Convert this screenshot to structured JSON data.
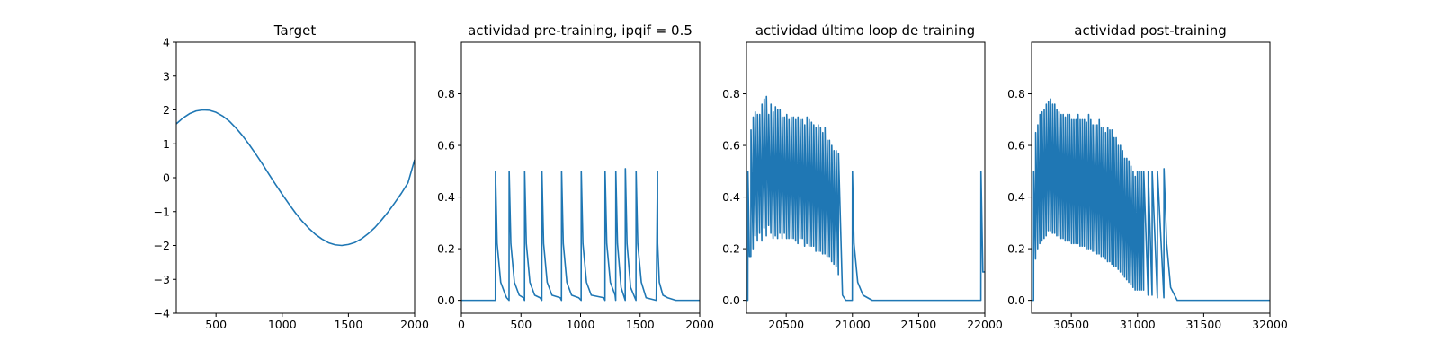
{
  "figure": {
    "background": "#ffffff",
    "line_color": "#1f77b4"
  },
  "chart_data": [
    {
      "type": "line",
      "title": "Target",
      "xlim": [
        200,
        2000
      ],
      "ylim": [
        -4,
        4
      ],
      "xticks": [
        500,
        1000,
        1500,
        2000
      ],
      "yticks": [
        -4,
        -3,
        -2,
        -1,
        0,
        1,
        2,
        3,
        4
      ],
      "tick_labels_x": [
        "500",
        "1000",
        "1500",
        "2000"
      ],
      "tick_labels_y": [
        "−4",
        "−3",
        "−2",
        "−1",
        "0",
        "1",
        "2",
        "3",
        "4"
      ],
      "series": [
        {
          "x": [
            200,
            250,
            300,
            350,
            400,
            450,
            500,
            550,
            600,
            650,
            700,
            750,
            800,
            850,
            900,
            950,
            1000,
            1050,
            1100,
            1150,
            1200,
            1250,
            1300,
            1350,
            1400,
            1450,
            1500,
            1550,
            1600,
            1650,
            1700,
            1750,
            1800,
            1850,
            1900,
            1950,
            2000
          ],
          "y": [
            1.59,
            1.76,
            1.89,
            1.97,
            2.0,
            1.99,
            1.93,
            1.82,
            1.67,
            1.47,
            1.24,
            0.98,
            0.7,
            0.41,
            0.1,
            -0.2,
            -0.49,
            -0.77,
            -1.04,
            -1.28,
            -1.49,
            -1.67,
            -1.81,
            -1.92,
            -1.98,
            -2.0,
            -1.97,
            -1.91,
            -1.8,
            -1.65,
            -1.47,
            -1.25,
            -1.01,
            -0.74,
            -0.46,
            -0.15,
            0.53
          ]
        }
      ]
    },
    {
      "type": "line",
      "title": "actividad pre-training, ipqif = 0.5",
      "xlim": [
        0,
        2000
      ],
      "ylim": [
        -0.05,
        1.0
      ],
      "xticks": [
        0,
        500,
        1000,
        1500,
        2000
      ],
      "yticks": [
        0.0,
        0.2,
        0.4,
        0.6,
        0.8
      ],
      "tick_labels_x": [
        "0",
        "500",
        "1000",
        "1500",
        "2000"
      ],
      "tick_labels_y": [
        "0.0",
        "0.2",
        "0.4",
        "0.6",
        "0.8"
      ],
      "series": [
        {
          "x": [
            0,
            285,
            286,
            300,
            330,
            370,
            380,
            400,
            401,
            415,
            445,
            485,
            520,
            530,
            531,
            545,
            575,
            615,
            660,
            675,
            676,
            690,
            720,
            760,
            830,
            840,
            841,
            855,
            885,
            925,
            985,
            1005,
            1006,
            1020,
            1050,
            1090,
            1195,
            1205,
            1206,
            1220,
            1250,
            1290,
            1295,
            1296,
            1310,
            1340,
            1375,
            1376,
            1390,
            1420,
            1465,
            1466,
            1480,
            1510,
            1550,
            1635,
            1646,
            1647,
            1661,
            1691,
            1731,
            1800,
            2000
          ],
          "y": [
            0,
            0,
            0.5,
            0.22,
            0.07,
            0.02,
            0.01,
            0,
            0.5,
            0.22,
            0.07,
            0.02,
            0.01,
            0,
            0.5,
            0.22,
            0.07,
            0.02,
            0.01,
            0,
            0.5,
            0.22,
            0.07,
            0.02,
            0.01,
            0,
            0.5,
            0.22,
            0.07,
            0.02,
            0.01,
            0,
            0.5,
            0.22,
            0.07,
            0.02,
            0.01,
            0,
            0.5,
            0.22,
            0.07,
            0.02,
            0,
            0.5,
            0.22,
            0.05,
            0,
            0.51,
            0.22,
            0.05,
            0,
            0.5,
            0.22,
            0.07,
            0.01,
            0,
            0.5,
            0.22,
            0.07,
            0.02,
            0.01,
            0,
            0
          ]
        }
      ]
    },
    {
      "type": "line",
      "title": "actividad último loop de training",
      "xlim": [
        20200,
        22000
      ],
      "ylim": [
        -0.05,
        1.0
      ],
      "xticks": [
        20500,
        21000,
        21500,
        22000
      ],
      "yticks": [
        0.0,
        0.2,
        0.4,
        0.6,
        0.8
      ],
      "tick_labels_x": [
        "20500",
        "21000",
        "21500",
        "22000"
      ],
      "tick_labels_y": [
        "0.0",
        "0.2",
        "0.4",
        "0.6",
        "0.8"
      ],
      "series": [
        {
          "x": [
            20200,
            20210,
            20211,
            20222,
            20233,
            20234,
            20250,
            20251,
            20265,
            20266,
            20282,
            20283,
            20299,
            20300,
            20316,
            20317,
            20333,
            20334,
            20350,
            20351,
            20367,
            20368,
            20384,
            20385,
            20401,
            20402,
            20418,
            20419,
            20435,
            20436,
            20452,
            20453,
            20469,
            20470,
            20486,
            20487,
            20503,
            20504,
            20520,
            20521,
            20537,
            20538,
            20554,
            20555,
            20571,
            20572,
            20588,
            20589,
            20605,
            20606,
            20622,
            20623,
            20639,
            20640,
            20656,
            20657,
            20673,
            20674,
            20690,
            20691,
            20707,
            20708,
            20724,
            20725,
            20741,
            20742,
            20758,
            20759,
            20775,
            20776,
            20792,
            20793,
            20809,
            20810,
            20826,
            20827,
            20843,
            20844,
            20860,
            20861,
            20877,
            20878,
            20894,
            20895,
            20925,
            20950,
            20990,
            20999,
            21000,
            21012,
            21040,
            21080,
            21150,
            21960,
            21970,
            21971,
            21985,
            22000
          ],
          "y": [
            0,
            0,
            0.5,
            0.17,
            0.17,
            0.66,
            0.2,
            0.71,
            0.25,
            0.73,
            0.23,
            0.72,
            0.26,
            0.72,
            0.23,
            0.76,
            0.28,
            0.78,
            0.25,
            0.79,
            0.29,
            0.72,
            0.26,
            0.76,
            0.24,
            0.73,
            0.25,
            0.75,
            0.24,
            0.74,
            0.26,
            0.74,
            0.24,
            0.71,
            0.26,
            0.71,
            0.24,
            0.72,
            0.24,
            0.7,
            0.24,
            0.71,
            0.24,
            0.71,
            0.23,
            0.7,
            0.22,
            0.71,
            0.24,
            0.7,
            0.24,
            0.7,
            0.21,
            0.68,
            0.22,
            0.71,
            0.21,
            0.7,
            0.21,
            0.69,
            0.21,
            0.68,
            0.19,
            0.67,
            0.19,
            0.68,
            0.19,
            0.67,
            0.18,
            0.65,
            0.18,
            0.67,
            0.17,
            0.62,
            0.17,
            0.62,
            0.15,
            0.6,
            0.14,
            0.58,
            0.13,
            0.58,
            0.1,
            0.57,
            0.02,
            0.0,
            0.0,
            0.0,
            0.5,
            0.22,
            0.07,
            0.02,
            0,
            0,
            0,
            0.5,
            0.11,
            0.11
          ]
        }
      ]
    },
    {
      "type": "line",
      "title": "actividad post-training",
      "xlim": [
        30200,
        32000
      ],
      "ylim": [
        -0.05,
        1.0
      ],
      "xticks": [
        30500,
        31000,
        31500,
        32000
      ],
      "yticks": [
        0.0,
        0.2,
        0.4,
        0.6,
        0.8
      ],
      "tick_labels_x": [
        "30500",
        "31000",
        "31500",
        "32000"
      ],
      "tick_labels_y": [
        "0.0",
        "0.2",
        "0.4",
        "0.6",
        "0.8"
      ],
      "series": [
        {
          "x": [
            30200,
            30215,
            30216,
            30230,
            30231,
            30246,
            30247,
            30262,
            30263,
            30278,
            30279,
            30294,
            30295,
            30310,
            30311,
            30326,
            30327,
            30342,
            30343,
            30358,
            30359,
            30374,
            30375,
            30390,
            30391,
            30406,
            30407,
            30422,
            30423,
            30438,
            30439,
            30454,
            30455,
            30470,
            30471,
            30486,
            30487,
            30502,
            30503,
            30518,
            30519,
            30534,
            30535,
            30550,
            30551,
            30566,
            30567,
            30582,
            30583,
            30598,
            30599,
            30614,
            30615,
            30630,
            30631,
            30646,
            30647,
            30662,
            30663,
            30678,
            30679,
            30694,
            30695,
            30710,
            30711,
            30726,
            30727,
            30742,
            30743,
            30758,
            30759,
            30774,
            30775,
            30790,
            30791,
            30806,
            30807,
            30822,
            30823,
            30838,
            30839,
            30854,
            30855,
            30870,
            30871,
            30886,
            30887,
            30902,
            30903,
            30918,
            30919,
            30934,
            30935,
            30950,
            30951,
            30966,
            30967,
            30982,
            30983,
            30998,
            30999,
            31014,
            31015,
            31030,
            31031,
            31046,
            31047,
            31080,
            31081,
            31110,
            31111,
            31150,
            31151,
            31199,
            31200,
            31220,
            31250,
            31300,
            31400,
            32000
          ],
          "y": [
            0,
            0,
            0.5,
            0.16,
            0.65,
            0.2,
            0.68,
            0.22,
            0.72,
            0.23,
            0.73,
            0.24,
            0.74,
            0.25,
            0.76,
            0.27,
            0.77,
            0.27,
            0.78,
            0.26,
            0.76,
            0.26,
            0.76,
            0.25,
            0.74,
            0.25,
            0.73,
            0.24,
            0.72,
            0.24,
            0.72,
            0.23,
            0.71,
            0.23,
            0.72,
            0.23,
            0.72,
            0.22,
            0.7,
            0.22,
            0.7,
            0.22,
            0.7,
            0.22,
            0.72,
            0.21,
            0.7,
            0.21,
            0.7,
            0.21,
            0.7,
            0.2,
            0.69,
            0.2,
            0.72,
            0.2,
            0.7,
            0.19,
            0.68,
            0.19,
            0.68,
            0.18,
            0.68,
            0.18,
            0.7,
            0.17,
            0.67,
            0.17,
            0.67,
            0.16,
            0.65,
            0.15,
            0.67,
            0.15,
            0.66,
            0.14,
            0.66,
            0.13,
            0.63,
            0.13,
            0.63,
            0.12,
            0.6,
            0.11,
            0.6,
            0.1,
            0.58,
            0.09,
            0.55,
            0.08,
            0.55,
            0.07,
            0.54,
            0.06,
            0.52,
            0.05,
            0.5,
            0.04,
            0.48,
            0.04,
            0.5,
            0.04,
            0.5,
            0.04,
            0.5,
            0.04,
            0.5,
            0.02,
            0.5,
            0.02,
            0.5,
            0.01,
            0.5,
            0.01,
            0.51,
            0.22,
            0.05,
            0,
            0,
            0
          ]
        }
      ]
    }
  ]
}
